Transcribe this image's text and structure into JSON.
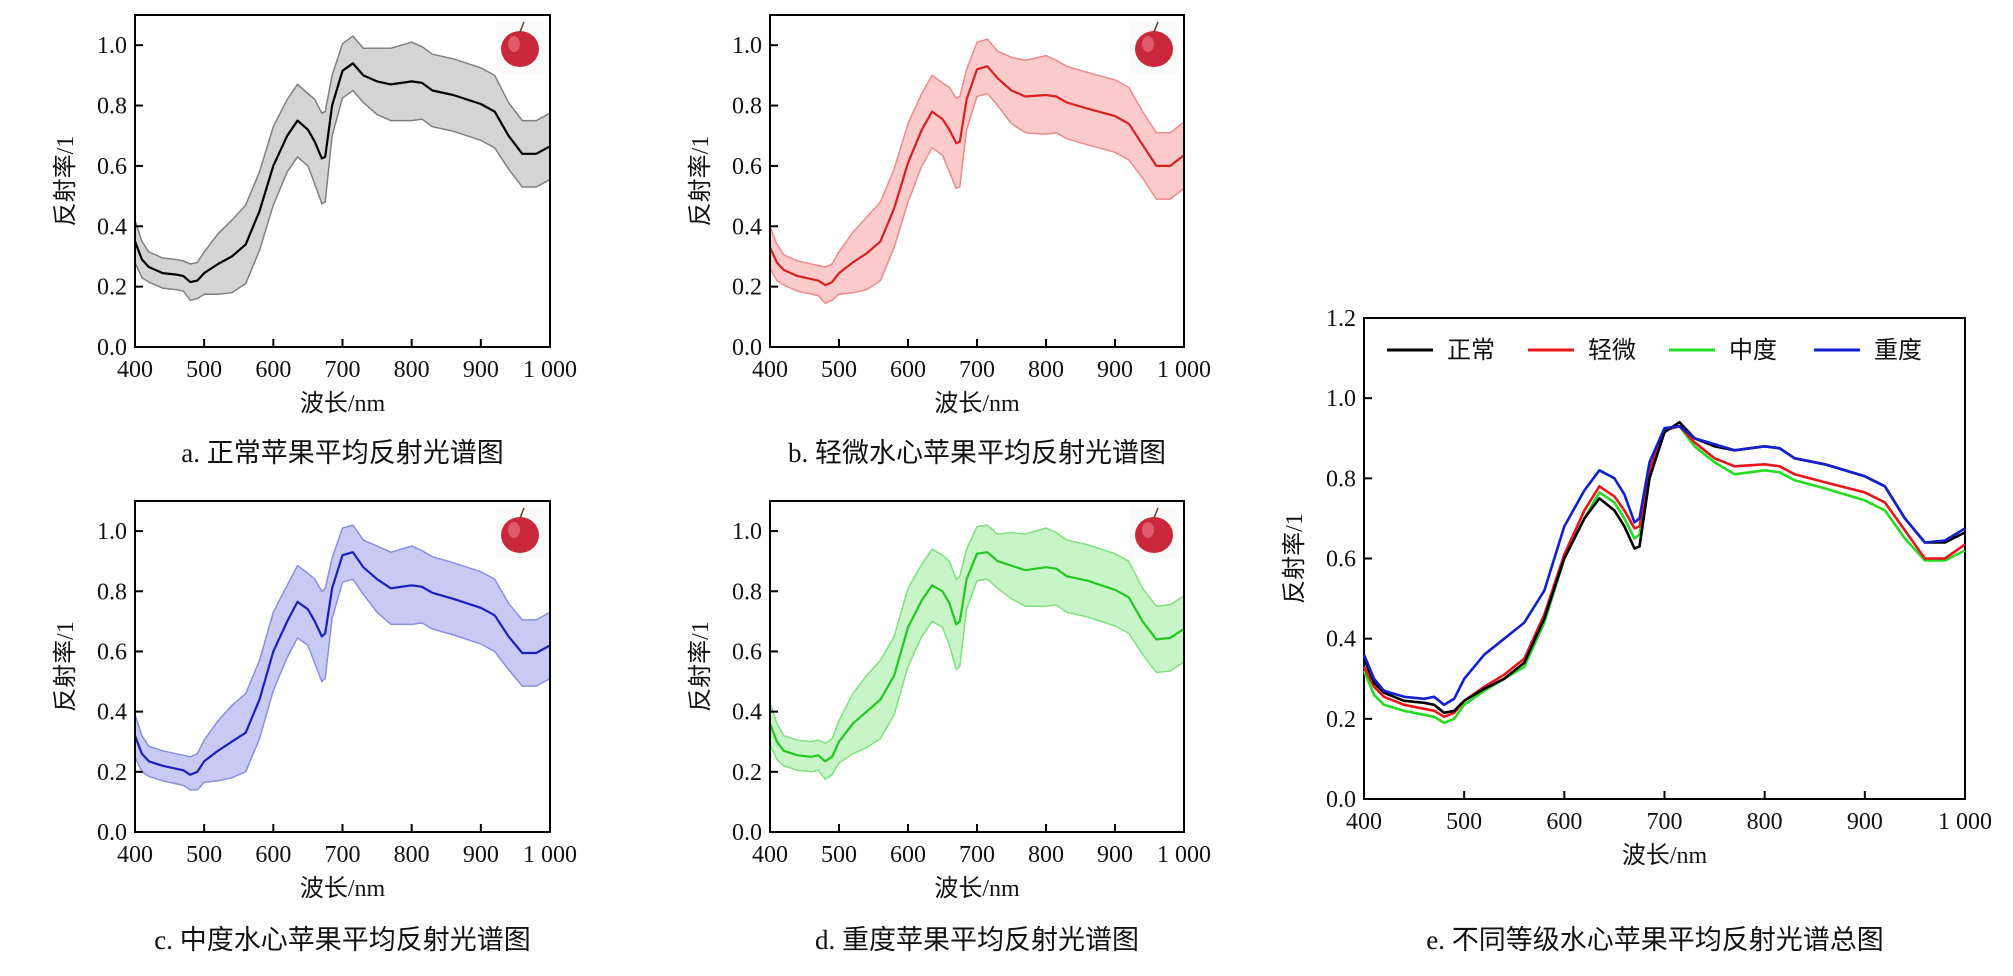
{
  "chart_data": {
    "type": "line",
    "wavelengths": [
      400,
      410,
      420,
      440,
      460,
      470,
      480,
      490,
      500,
      520,
      540,
      560,
      580,
      600,
      620,
      635,
      650,
      660,
      670,
      675,
      685,
      700,
      715,
      730,
      750,
      770,
      800,
      815,
      830,
      860,
      900,
      920,
      940,
      960,
      980,
      1000
    ],
    "series": [
      {
        "name": "正常",
        "color": "#000000",
        "values": [
          0.35,
          0.29,
          0.265,
          0.245,
          0.24,
          0.235,
          0.215,
          0.22,
          0.245,
          0.275,
          0.3,
          0.34,
          0.45,
          0.6,
          0.7,
          0.75,
          0.72,
          0.68,
          0.625,
          0.63,
          0.8,
          0.915,
          0.94,
          0.9,
          0.88,
          0.87,
          0.88,
          0.875,
          0.85,
          0.835,
          0.805,
          0.78,
          0.7,
          0.64,
          0.64,
          0.665
        ]
      },
      {
        "name": "轻微",
        "color": "#e8161b",
        "values": [
          0.33,
          0.28,
          0.255,
          0.235,
          0.225,
          0.22,
          0.205,
          0.215,
          0.245,
          0.28,
          0.31,
          0.35,
          0.46,
          0.61,
          0.72,
          0.78,
          0.755,
          0.72,
          0.675,
          0.68,
          0.82,
          0.92,
          0.93,
          0.89,
          0.85,
          0.83,
          0.835,
          0.83,
          0.81,
          0.79,
          0.765,
          0.74,
          0.67,
          0.6,
          0.6,
          0.635
        ]
      },
      {
        "name": "中度",
        "color": "#22dd22",
        "values": [
          0.32,
          0.26,
          0.235,
          0.22,
          0.21,
          0.205,
          0.19,
          0.2,
          0.235,
          0.27,
          0.3,
          0.33,
          0.44,
          0.6,
          0.7,
          0.765,
          0.74,
          0.7,
          0.65,
          0.66,
          0.81,
          0.92,
          0.93,
          0.88,
          0.84,
          0.81,
          0.82,
          0.815,
          0.795,
          0.775,
          0.745,
          0.72,
          0.65,
          0.595,
          0.595,
          0.62
        ]
      },
      {
        "name": "重度",
        "color": "#1020d0",
        "values": [
          0.36,
          0.3,
          0.27,
          0.255,
          0.25,
          0.255,
          0.235,
          0.25,
          0.3,
          0.36,
          0.4,
          0.44,
          0.52,
          0.68,
          0.77,
          0.82,
          0.8,
          0.76,
          0.69,
          0.7,
          0.84,
          0.925,
          0.93,
          0.9,
          0.885,
          0.87,
          0.88,
          0.875,
          0.85,
          0.835,
          0.805,
          0.78,
          0.7,
          0.64,
          0.645,
          0.675
        ]
      }
    ],
    "std": [
      0.07,
      0.06,
      0.05,
      0.05,
      0.05,
      0.05,
      0.06,
      0.06,
      0.07,
      0.1,
      0.12,
      0.13,
      0.13,
      0.13,
      0.12,
      0.12,
      0.12,
      0.14,
      0.15,
      0.15,
      0.1,
      0.09,
      0.09,
      0.09,
      0.11,
      0.12,
      0.13,
      0.12,
      0.12,
      0.12,
      0.12,
      0.12,
      0.11,
      0.11,
      0.11,
      0.11
    ],
    "xlabel": "波长/nm",
    "ylabel": "反射率/1",
    "xlim": [
      400,
      1000
    ],
    "xticks": [
      "400",
      "500",
      "600",
      "700",
      "800",
      "900",
      "1 000"
    ],
    "panels": [
      {
        "id": "a",
        "caption": "a. 正常苹果平均反射光谱图",
        "series_index": 0,
        "line_color": "#000000",
        "band_color": "#d4d4d4",
        "band_edge": "#808080",
        "ylim": [
          0,
          1.1
        ],
        "yticks": [
          "0.0",
          "0.2",
          "0.4",
          "0.6",
          "0.8",
          "1.0"
        ]
      },
      {
        "id": "b",
        "caption": "b. 轻微水心苹果平均反射光谱图",
        "series_index": 1,
        "line_color": "#d82020",
        "band_color": "#fbcaca",
        "band_edge": "#ee8a8a",
        "ylim": [
          0,
          1.1
        ],
        "yticks": [
          "0.0",
          "0.2",
          "0.4",
          "0.6",
          "0.8",
          "1.0"
        ]
      },
      {
        "id": "c",
        "caption": "c. 中度水心苹果平均反射光谱图",
        "series_index": 2,
        "line_color": "#1a20c0",
        "band_color": "#c8caf4",
        "band_edge": "#8890e0",
        "ylim": [
          0,
          1.1
        ],
        "yticks": [
          "0.0",
          "0.2",
          "0.4",
          "0.6",
          "0.8",
          "1.0"
        ]
      },
      {
        "id": "d",
        "caption": "d. 重度苹果平均反射光谱图",
        "series_index": 3,
        "line_color": "#20c820",
        "band_color": "#c8f5c8",
        "band_edge": "#80e080",
        "ylim": [
          0,
          1.1
        ],
        "yticks": [
          "0.0",
          "0.2",
          "0.4",
          "0.6",
          "0.8",
          "1.0"
        ]
      }
    ],
    "summary": {
      "caption": "e. 不同等级水心苹果平均反射光谱总图",
      "ylim": [
        0,
        1.2
      ],
      "yticks": [
        "0.0",
        "0.2",
        "0.4",
        "0.6",
        "0.8",
        "1.0",
        "1.2"
      ],
      "legend_position": "top"
    }
  }
}
